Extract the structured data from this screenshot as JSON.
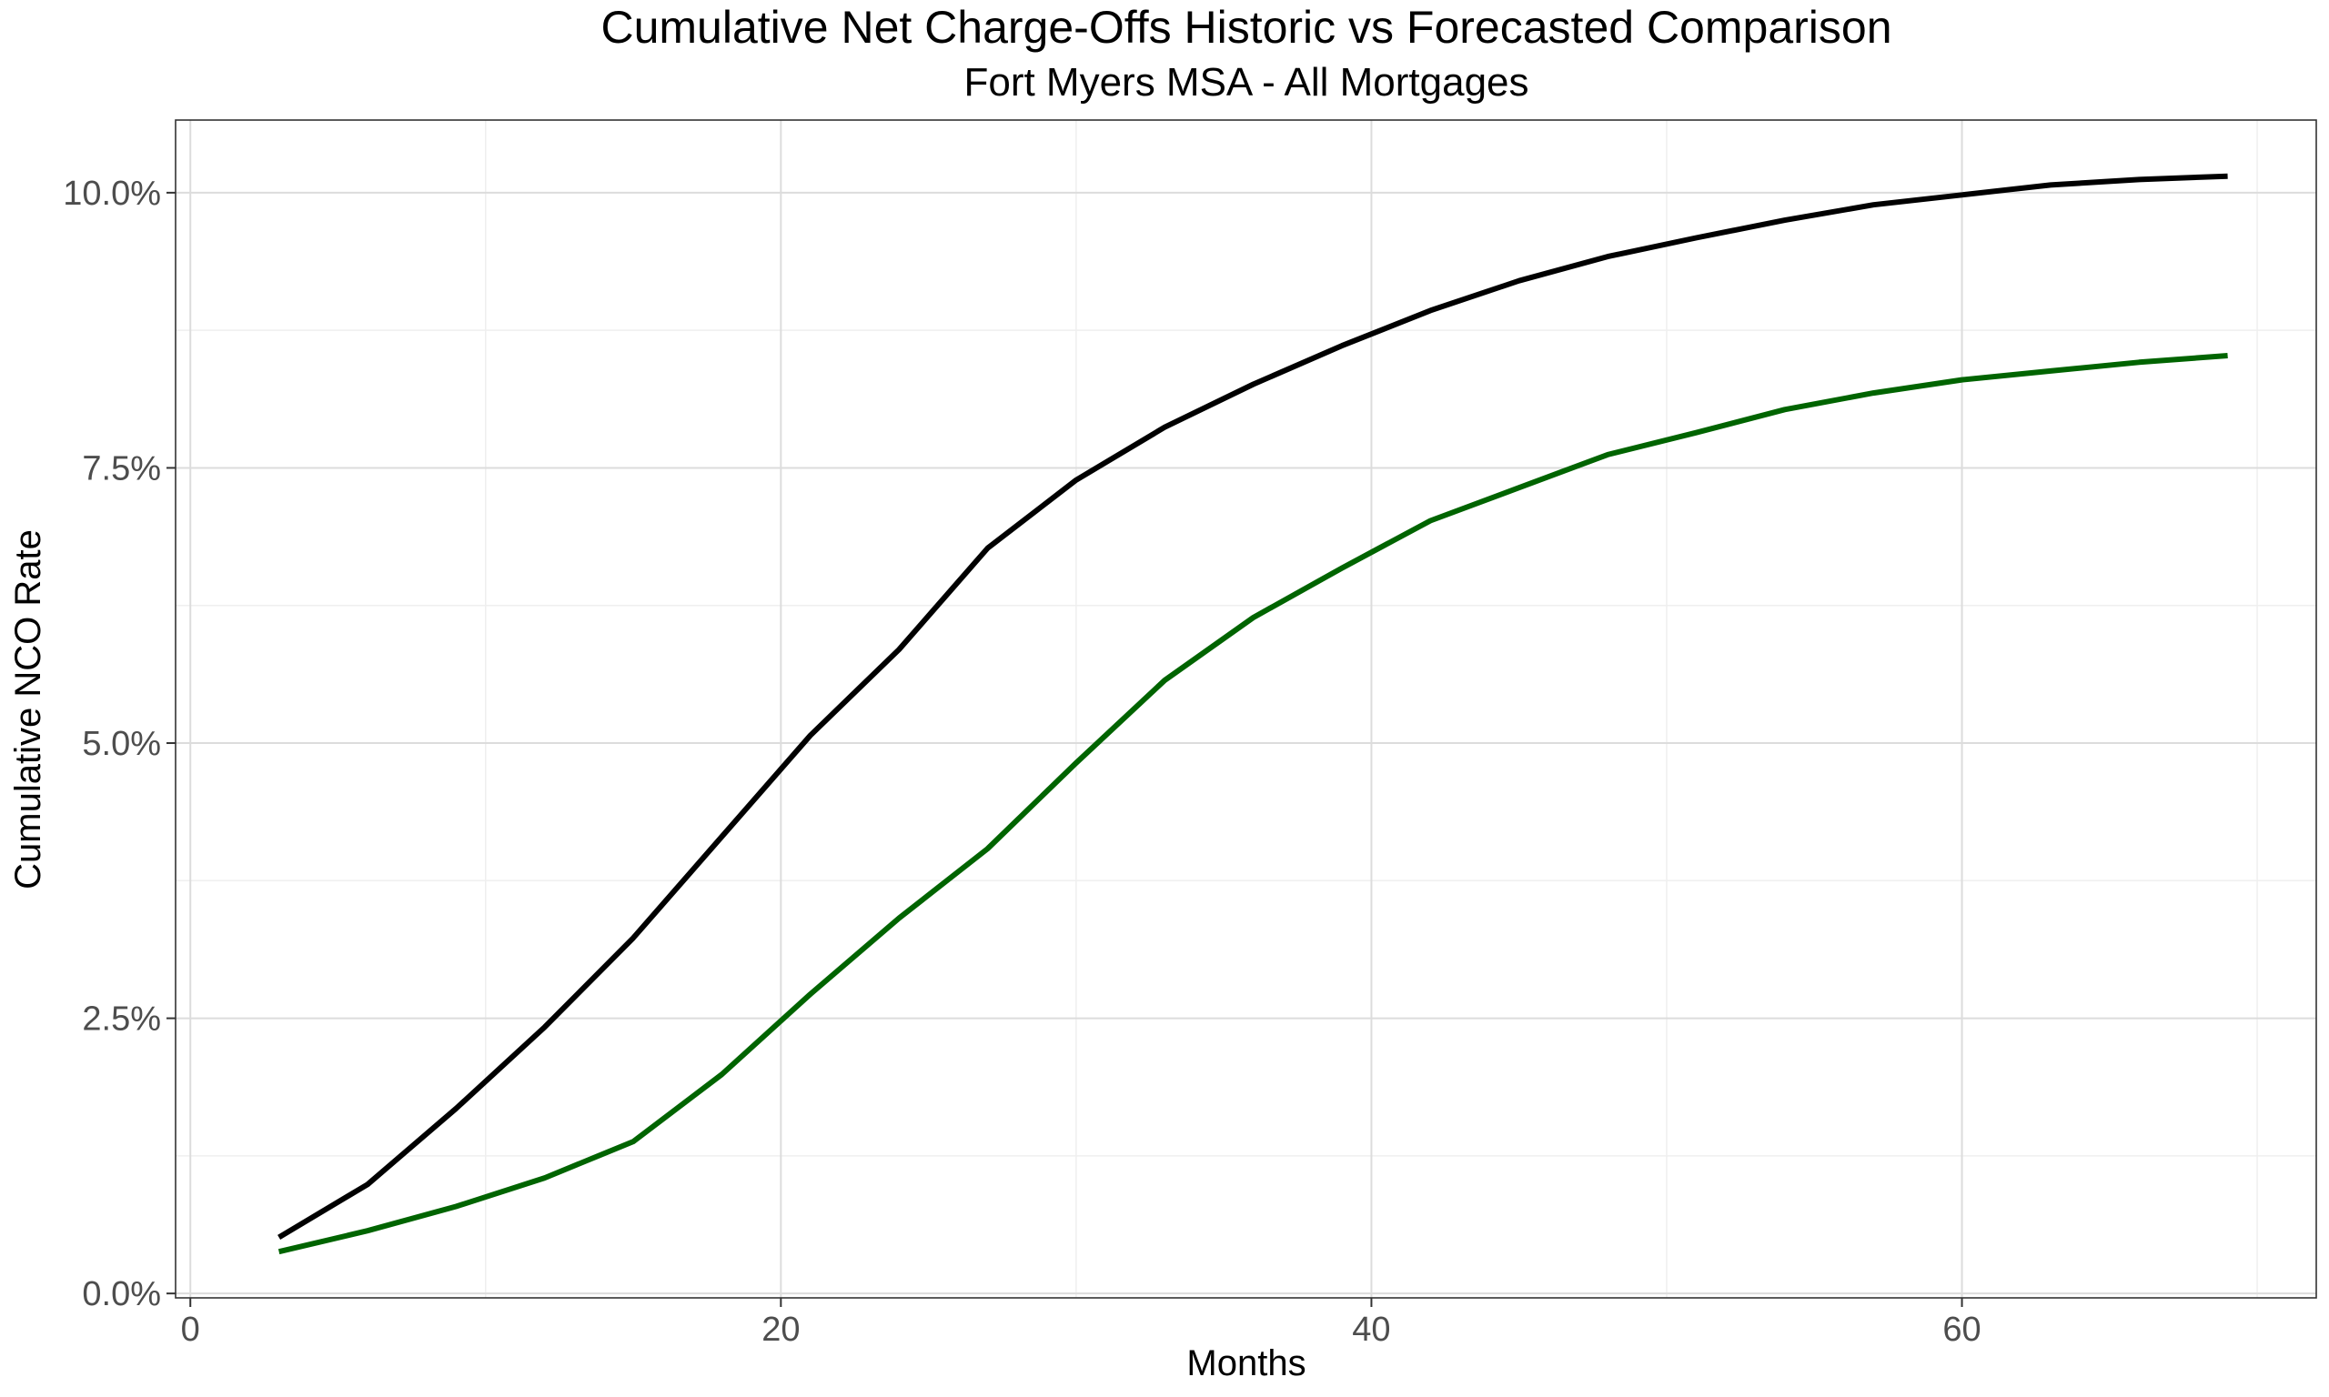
{
  "chart_data": {
    "type": "line",
    "title": "Cumulative Net Charge-Offs Historic vs Forecasted Comparison",
    "subtitle": "Fort Myers MSA - All Mortgages",
    "xlabel": "Months",
    "ylabel": "Cumulative NCO Rate",
    "xlim": [
      -0.5,
      72
    ],
    "ylim": [
      -0.0004,
      0.1066
    ],
    "x_ticks": [
      0,
      20,
      40,
      60
    ],
    "x_tick_labels": [
      "0",
      "20",
      "40",
      "60"
    ],
    "x_minor_ticks": [
      10,
      30,
      50,
      70
    ],
    "y_ticks": [
      0,
      0.025,
      0.05,
      0.075,
      0.1
    ],
    "y_tick_labels": [
      "0.0%",
      "2.5%",
      "5.0%",
      "7.5%",
      "10.0%"
    ],
    "y_minor_ticks": [
      0.0125,
      0.0375,
      0.0625,
      0.0875
    ],
    "grid": true,
    "legend": "none",
    "x": [
      3,
      6,
      9,
      12,
      15,
      18,
      21,
      24,
      27,
      30,
      33,
      36,
      39,
      42,
      45,
      48,
      51,
      54,
      57,
      60,
      63,
      66,
      69
    ],
    "series": [
      {
        "color": "#000000",
        "values": [
          0.0051,
          0.0099,
          0.0168,
          0.0242,
          0.0323,
          0.0415,
          0.0507,
          0.0585,
          0.0677,
          0.0739,
          0.0787,
          0.0826,
          0.0861,
          0.0893,
          0.092,
          0.0942,
          0.0959,
          0.0975,
          0.0989,
          0.0998,
          0.1007,
          0.1012,
          0.1015
        ]
      },
      {
        "color": "#006400",
        "values": [
          0.0038,
          0.0057,
          0.0079,
          0.0105,
          0.0138,
          0.0199,
          0.0272,
          0.0341,
          0.0404,
          0.0482,
          0.0557,
          0.0614,
          0.0659,
          0.0702,
          0.0732,
          0.0762,
          0.0782,
          0.0803,
          0.0818,
          0.083,
          0.0838,
          0.0846,
          0.0852
        ]
      }
    ]
  }
}
